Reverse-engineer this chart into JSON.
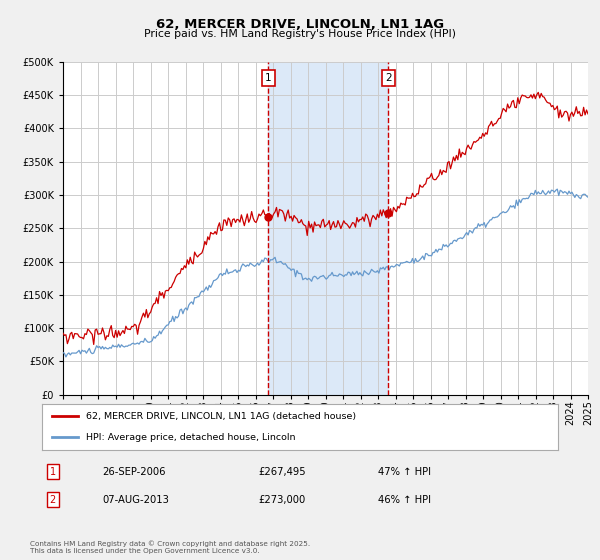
{
  "title": "62, MERCER DRIVE, LINCOLN, LN1 1AG",
  "subtitle": "Price paid vs. HM Land Registry's House Price Index (HPI)",
  "legend_entries": [
    "62, MERCER DRIVE, LINCOLN, LN1 1AG (detached house)",
    "HPI: Average price, detached house, Lincoln"
  ],
  "table_rows": [
    [
      "1",
      "26-SEP-2006",
      "£267,495",
      "47% ↑ HPI"
    ],
    [
      "2",
      "07-AUG-2013",
      "£273,000",
      "46% ↑ HPI"
    ]
  ],
  "footer": "Contains HM Land Registry data © Crown copyright and database right 2025.\nThis data is licensed under the Open Government Licence v3.0.",
  "sale1_date": 2006.74,
  "sale2_date": 2013.59,
  "sale1_price": 267495,
  "sale2_price": 273000,
  "vline1_x": 2006.74,
  "vline2_x": 2013.59,
  "shade_color": "#dce9f8",
  "red_line_color": "#cc0000",
  "blue_line_color": "#6699cc",
  "background_color": "#f0f0f0",
  "plot_bg_color": "#ffffff",
  "grid_color": "#cccccc",
  "ylim": [
    0,
    500000
  ],
  "xlim_start": 1995,
  "xlim_end": 2025
}
